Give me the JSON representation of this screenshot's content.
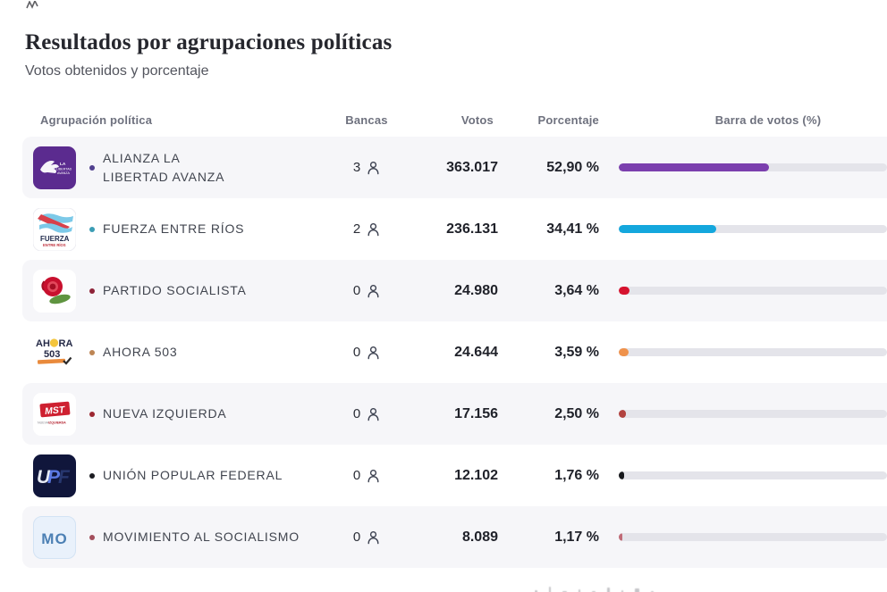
{
  "page": {
    "title": "Resultados por agrupaciones políticas",
    "subtitle": "Votos obtenidos y porcentaje"
  },
  "table": {
    "columns": {
      "party": "Agrupación política",
      "seats": "Bancas",
      "votes": "Votos",
      "percentage": "Porcentaje",
      "bar": "Barra de votos (%)"
    },
    "rows": [
      {
        "name": "ALIANZA LA\nLIBERTAD AVANZA",
        "seats": "3",
        "votes": "363.017",
        "percentage": "52,90 %",
        "pct": 52.9,
        "bar_color": "#7b3fae",
        "dot_color": "#51408f",
        "logo": {
          "id": "alianza-la-libertad-avanza",
          "lines": [
            "LA",
            "LIBERTAD",
            "AVANZA"
          ]
        }
      },
      {
        "name": "FUERZA ENTRE RÍOS",
        "seats": "2",
        "votes": "236.131",
        "percentage": "34,41 %",
        "pct": 34.41,
        "bar_color": "#14a7dd",
        "dot_color": "#3b9db4",
        "logo": {
          "id": "fuerza-entre-rios",
          "lines": [
            "FUERZA",
            "ENTRE RÍOS"
          ]
        }
      },
      {
        "name": "PARTIDO SOCIALISTA",
        "seats": "0",
        "votes": "24.980",
        "percentage": "3,64 %",
        "pct": 3.64,
        "bar_color": "#d6132f",
        "dot_color": "#8e2338",
        "logo": {
          "id": "partido-socialista-rose",
          "lines": []
        }
      },
      {
        "name": "AHORA 503",
        "seats": "0",
        "votes": "24.644",
        "percentage": "3,59 %",
        "pct": 3.59,
        "bar_color": "#ef924c",
        "dot_color": "#bd8554",
        "logo": {
          "id": "ahora-503",
          "lines": [
            "AHORA",
            "503"
          ]
        }
      },
      {
        "name": "NUEVA IZQUIERDA",
        "seats": "0",
        "votes": "17.156",
        "percentage": "2,50 %",
        "pct": 2.5,
        "bar_color": "#b2423f",
        "dot_color": "#9c2731",
        "logo": {
          "id": "mst-nueva-izquierda",
          "lines": [
            "MST",
            "NUEVA",
            "IZQUIERDA"
          ]
        }
      },
      {
        "name": "UNIÓN POPULAR FEDERAL",
        "seats": "0",
        "votes": "12.102",
        "percentage": "1,76 %",
        "pct": 1.76,
        "bar_color": "#17181c",
        "dot_color": "#1b1c22",
        "logo": {
          "id": "union-popular-federal",
          "lines": [
            "UPF"
          ]
        }
      },
      {
        "name": "MOVIMIENTO AL SOCIALISMO",
        "seats": "0",
        "votes": "8.089",
        "percentage": "1,17 %",
        "pct": 1.17,
        "bar_color": "#c06b77",
        "dot_color": "#a34e5c",
        "logo": {
          "id": "movimiento-al-socialismo",
          "lines": [
            "MO"
          ]
        }
      }
    ]
  },
  "chart_data": {
    "type": "bar",
    "orientation": "horizontal",
    "title": "Resultados por agrupaciones políticas",
    "subtitle": "Votos obtenidos y porcentaje",
    "categories": [
      "ALIANZA LA LIBERTAD AVANZA",
      "FUERZA ENTRE RÍOS",
      "PARTIDO SOCIALISTA",
      "AHORA 503",
      "NUEVA IZQUIERDA",
      "UNIÓN POPULAR FEDERAL",
      "MOVIMIENTO AL SOCIALISMO"
    ],
    "series": [
      {
        "name": "Bancas",
        "values": [
          3,
          2,
          0,
          0,
          0,
          0,
          0
        ]
      },
      {
        "name": "Votos",
        "values": [
          363017,
          236131,
          24980,
          24644,
          17156,
          12102,
          8089
        ]
      },
      {
        "name": "Porcentaje",
        "values": [
          52.9,
          34.41,
          3.64,
          3.59,
          2.5,
          1.76,
          1.17
        ]
      }
    ],
    "bar_colors": [
      "#7b3fae",
      "#14a7dd",
      "#d6132f",
      "#ef924c",
      "#b2423f",
      "#17181c",
      "#c06b77"
    ],
    "xlim": [
      0,
      100
    ],
    "legend": false,
    "grid": false
  }
}
